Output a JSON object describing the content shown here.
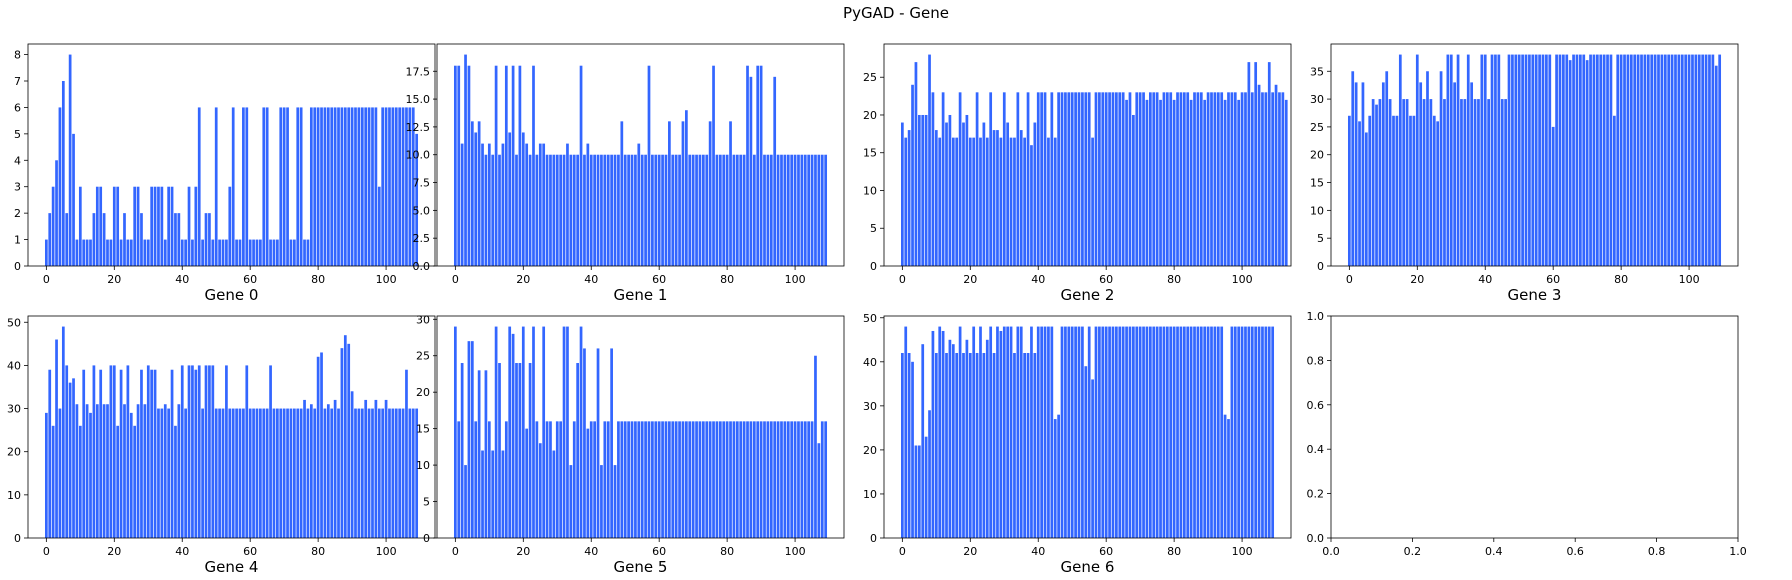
{
  "figure": {
    "title": "PyGAD - Gene",
    "bar_color": "#3366ff"
  },
  "chart_data": [
    {
      "type": "bar",
      "xlabel": "Gene 0",
      "ylim": [
        0,
        8.4
      ],
      "xlim": [
        -5.4,
        114.4
      ],
      "xticks": [
        0,
        20,
        40,
        60,
        80,
        100
      ],
      "yticks": [
        0,
        1,
        2,
        3,
        4,
        5,
        6,
        7,
        8
      ],
      "ytick_labels": [
        "0",
        "1",
        "2",
        "3",
        "4",
        "5",
        "6",
        "7",
        "8"
      ],
      "values": [
        1,
        2,
        3,
        4,
        6,
        7,
        2,
        8,
        5,
        1,
        3,
        1,
        1,
        1,
        2,
        3,
        3,
        2,
        1,
        1,
        3,
        3,
        1,
        2,
        1,
        1,
        3,
        3,
        2,
        1,
        1,
        3,
        3,
        3,
        3,
        1,
        3,
        3,
        2,
        2,
        1,
        1,
        3,
        1,
        3,
        6,
        1,
        2,
        2,
        1,
        6,
        1,
        1,
        1,
        3,
        6,
        1,
        1,
        6,
        6,
        1,
        1,
        1,
        1,
        6,
        6,
        1,
        1,
        1,
        6,
        6,
        6,
        1,
        1,
        6,
        6,
        1,
        1,
        6,
        6,
        6,
        6,
        6,
        6,
        6,
        6,
        6,
        6,
        6,
        6,
        6,
        6,
        6,
        6,
        6,
        6,
        6,
        6,
        3,
        6,
        6,
        6,
        6,
        6,
        6,
        6,
        6,
        6,
        6,
        5
      ]
    },
    {
      "type": "bar",
      "xlabel": "Gene 1",
      "ylim": [
        0,
        19.95
      ],
      "xlim": [
        -5.4,
        114.4
      ],
      "xticks": [
        0,
        20,
        40,
        60,
        80,
        100
      ],
      "yticks": [
        0,
        2.5,
        5,
        7.5,
        10,
        12.5,
        15,
        17.5
      ],
      "ytick_labels": [
        "0.0",
        "2.5",
        "5.0",
        "7.5",
        "10.0",
        "12.5",
        "15.0",
        "17.5"
      ],
      "values": [
        18,
        18,
        11,
        19,
        18,
        13,
        12,
        13,
        11,
        10,
        11,
        10,
        18,
        10,
        11,
        18,
        12,
        18,
        10,
        18,
        12,
        11,
        10,
        18,
        10,
        11,
        11,
        10,
        10,
        10,
        10,
        10,
        10,
        11,
        10,
        10,
        10,
        18,
        10,
        11,
        10,
        10,
        10,
        10,
        10,
        10,
        10,
        10,
        10,
        13,
        10,
        10,
        10,
        10,
        11,
        10,
        10,
        18,
        10,
        10,
        10,
        10,
        10,
        13,
        10,
        10,
        10,
        13,
        14,
        10,
        10,
        10,
        10,
        10,
        10,
        13,
        18,
        10,
        10,
        10,
        10,
        13,
        10,
        10,
        10,
        10,
        18,
        17,
        10,
        18,
        18,
        10,
        10,
        10,
        17,
        10,
        10,
        10,
        10,
        10,
        10,
        10,
        10,
        10,
        10,
        10,
        10,
        10,
        10,
        10
      ]
    },
    {
      "type": "bar",
      "xlabel": "Gene 2",
      "ylim": [
        0,
        29.4
      ],
      "xlim": [
        -5.4,
        114.4
      ],
      "xticks": [
        0,
        20,
        40,
        60,
        80,
        100
      ],
      "yticks": [
        0,
        5,
        10,
        15,
        20,
        25
      ],
      "ytick_labels": [
        "0",
        "5",
        "10",
        "15",
        "20",
        "25"
      ],
      "values": [
        19,
        17,
        18,
        24,
        27,
        20,
        20,
        20,
        28,
        23,
        18,
        17,
        23,
        19,
        20,
        17,
        17,
        23,
        19,
        20,
        17,
        17,
        23,
        17,
        19,
        17,
        23,
        18,
        18,
        17,
        23,
        19,
        17,
        17,
        23,
        18,
        17,
        23,
        16,
        19,
        23,
        23,
        23,
        17,
        23,
        17,
        23,
        23,
        23,
        23,
        23,
        23,
        23,
        23,
        23,
        23,
        17,
        23,
        23,
        23,
        23,
        23,
        23,
        23,
        23,
        23,
        22,
        23,
        20,
        23,
        23,
        23,
        22,
        23,
        23,
        23,
        22,
        23,
        23,
        23,
        22,
        23,
        23,
        23,
        23,
        22,
        23,
        23,
        23,
        22,
        23,
        23,
        23,
        23,
        23,
        22,
        23,
        23,
        23,
        22,
        23,
        23,
        27,
        23,
        27,
        24,
        23,
        23,
        27,
        23,
        24,
        23,
        23,
        22
      ]
    },
    {
      "type": "bar",
      "xlabel": "Gene 3",
      "ylim": [
        0,
        39.9
      ],
      "xlim": [
        -5.4,
        114.4
      ],
      "xticks": [
        0,
        20,
        40,
        60,
        80,
        100
      ],
      "yticks": [
        0,
        5,
        10,
        15,
        20,
        25,
        30,
        35
      ],
      "ytick_labels": [
        "0",
        "5",
        "10",
        "15",
        "20",
        "25",
        "30",
        "35"
      ],
      "values": [
        27,
        35,
        33,
        26,
        33,
        24,
        27,
        30,
        29,
        30,
        33,
        35,
        30,
        27,
        27,
        38,
        30,
        30,
        27,
        27,
        38,
        33,
        30,
        35,
        30,
        27,
        26,
        35,
        30,
        38,
        38,
        33,
        38,
        30,
        30,
        38,
        33,
        30,
        30,
        38,
        38,
        30,
        38,
        38,
        38,
        30,
        30,
        38,
        38,
        38,
        38,
        38,
        38,
        38,
        38,
        38,
        38,
        38,
        38,
        38,
        25,
        38,
        38,
        38,
        38,
        37,
        38,
        38,
        38,
        38,
        37,
        38,
        38,
        38,
        38,
        38,
        38,
        38,
        27,
        38,
        38,
        38,
        38,
        38,
        38,
        38,
        38,
        38,
        38,
        38,
        38,
        38,
        38,
        38,
        38,
        38,
        38,
        38,
        38,
        38,
        38,
        38,
        38,
        38,
        38,
        38,
        38,
        38,
        36,
        38
      ]
    },
    {
      "type": "bar",
      "xlabel": "Gene 4",
      "ylim": [
        0,
        51.45
      ],
      "xlim": [
        -5.4,
        114.4
      ],
      "xticks": [
        0,
        20,
        40,
        60,
        80,
        100
      ],
      "yticks": [
        0,
        10,
        20,
        30,
        40,
        50
      ],
      "ytick_labels": [
        "0",
        "10",
        "20",
        "30",
        "40",
        "50"
      ],
      "values": [
        29,
        39,
        26,
        46,
        30,
        49,
        40,
        36,
        37,
        31,
        26,
        39,
        31,
        29,
        40,
        31,
        39,
        31,
        31,
        40,
        40,
        26,
        39,
        31,
        40,
        29,
        26,
        31,
        39,
        31,
        40,
        39,
        39,
        30,
        30,
        31,
        30,
        39,
        26,
        31,
        40,
        30,
        40,
        40,
        39,
        40,
        30,
        40,
        40,
        40,
        30,
        30,
        30,
        40,
        30,
        30,
        30,
        30,
        30,
        40,
        30,
        30,
        30,
        30,
        30,
        30,
        40,
        30,
        30,
        30,
        30,
        30,
        30,
        30,
        30,
        30,
        32,
        30,
        31,
        30,
        42,
        43,
        30,
        31,
        30,
        32,
        30,
        44,
        47,
        45,
        34,
        30,
        30,
        30,
        32,
        30,
        30,
        32,
        30,
        30,
        32,
        30,
        30,
        30,
        30,
        30,
        39,
        30,
        30,
        30
      ]
    },
    {
      "type": "bar",
      "xlabel": "Gene 5",
      "ylim": [
        0,
        30.45
      ],
      "xlim": [
        -5.4,
        114.4
      ],
      "xticks": [
        0,
        20,
        40,
        60,
        80,
        100
      ],
      "yticks": [
        0,
        5,
        10,
        15,
        20,
        25,
        30
      ],
      "ytick_labels": [
        "0",
        "5",
        "10",
        "15",
        "20",
        "25",
        "30"
      ],
      "values": [
        29,
        16,
        24,
        10,
        27,
        27,
        16,
        23,
        12,
        23,
        16,
        12,
        29,
        24,
        12,
        16,
        29,
        28,
        24,
        24,
        29,
        15,
        24,
        29,
        16,
        13,
        29,
        16,
        16,
        12,
        16,
        16,
        29,
        29,
        10,
        16,
        24,
        29,
        26,
        15,
        16,
        16,
        26,
        10,
        16,
        16,
        26,
        10,
        16,
        16,
        16,
        16,
        16,
        16,
        16,
        16,
        16,
        16,
        16,
        16,
        16,
        16,
        16,
        16,
        16,
        16,
        16,
        16,
        16,
        16,
        16,
        16,
        16,
        16,
        16,
        16,
        16,
        16,
        16,
        16,
        16,
        16,
        16,
        16,
        16,
        16,
        16,
        16,
        16,
        16,
        16,
        16,
        16,
        16,
        16,
        16,
        16,
        16,
        16,
        16,
        16,
        16,
        16,
        16,
        16,
        16,
        25,
        13,
        16,
        16
      ]
    },
    {
      "type": "bar",
      "xlabel": "Gene 6",
      "ylim": [
        0,
        50.4
      ],
      "xlim": [
        -5.4,
        114.4
      ],
      "xticks": [
        0,
        20,
        40,
        60,
        80,
        100
      ],
      "yticks": [
        0,
        10,
        20,
        30,
        40,
        50
      ],
      "ytick_labels": [
        "0",
        "10",
        "20",
        "30",
        "40",
        "50"
      ],
      "values": [
        42,
        48,
        42,
        40,
        21,
        21,
        44,
        23,
        29,
        47,
        42,
        48,
        47,
        42,
        45,
        44,
        42,
        48,
        42,
        45,
        42,
        48,
        42,
        48,
        42,
        45,
        48,
        42,
        48,
        47,
        48,
        48,
        48,
        42,
        48,
        48,
        42,
        42,
        48,
        42,
        48,
        48,
        48,
        48,
        48,
        27,
        28,
        48,
        48,
        48,
        48,
        48,
        48,
        48,
        39,
        48,
        36,
        48,
        48,
        48,
        48,
        48,
        48,
        48,
        48,
        48,
        48,
        48,
        48,
        48,
        48,
        48,
        48,
        48,
        48,
        48,
        48,
        48,
        48,
        48,
        48,
        48,
        48,
        48,
        48,
        48,
        48,
        48,
        48,
        48,
        48,
        48,
        48,
        48,
        48,
        28,
        27,
        48,
        48,
        48,
        48,
        48,
        48,
        48,
        48,
        48,
        48,
        48,
        48,
        48
      ]
    },
    {
      "type": "bar",
      "xlabel": "",
      "ylim": [
        0,
        1
      ],
      "xlim": [
        0,
        1
      ],
      "xticks": [
        0,
        0.2,
        0.4,
        0.6,
        0.8,
        1.0
      ],
      "xtick_labels": [
        "0.0",
        "0.2",
        "0.4",
        "0.6",
        "0.8",
        "1.0"
      ],
      "yticks": [
        0,
        0.2,
        0.4,
        0.6,
        0.8,
        1.0
      ],
      "ytick_labels": [
        "0.0",
        "0.2",
        "0.4",
        "0.6",
        "0.8",
        "1.0"
      ],
      "values": []
    }
  ]
}
